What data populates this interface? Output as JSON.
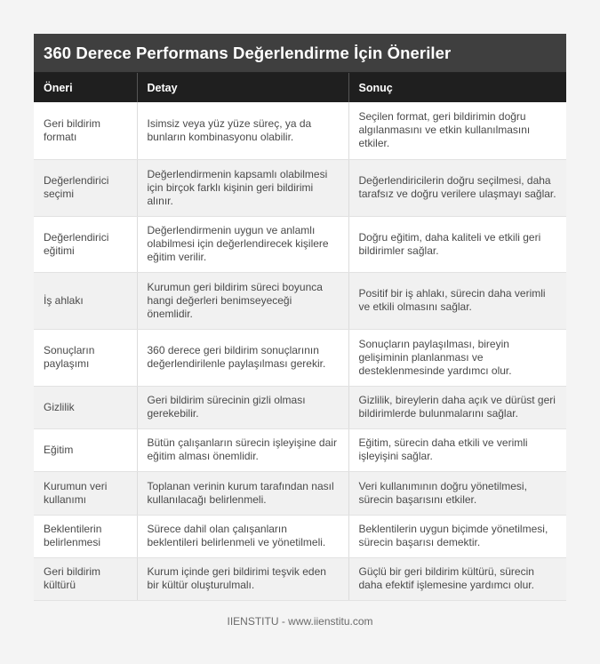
{
  "title": "360 Derece Performans Değerlendirme İçin Öneriler",
  "columns": [
    "Öneri",
    "Detay",
    "Sonuç"
  ],
  "rows": [
    {
      "oneri": "Geri bildirim formatı",
      "detay": "Isimsiz veya yüz yüze süreç, ya da bunların kombinasyonu olabilir.",
      "sonuc": "Seçilen format, geri bildirimin doğru algılanmasını ve etkin kullanılmasını etkiler."
    },
    {
      "oneri": "Değerlendirici seçimi",
      "detay": "Değerlendirmenin kapsamlı olabilmesi için birçok farklı kişinin geri bildirimi alınır.",
      "sonuc": "Değerlendiricilerin doğru seçilmesi, daha tarafsız ve doğru verilere ulaşmayı sağlar."
    },
    {
      "oneri": "Değerlendirici eğitimi",
      "detay": "Değerlendirmenin uygun ve anlamlı olabilmesi için değerlendirecek kişilere eğitim verilir.",
      "sonuc": "Doğru eğitim, daha kaliteli ve etkili geri bildirimler sağlar."
    },
    {
      "oneri": "İş ahlakı",
      "detay": "Kurumun geri bildirim süreci boyunca hangi değerleri benimseyeceği önemlidir.",
      "sonuc": "Positif bir iş ahlakı, sürecin daha verimli ve etkili olmasını sağlar."
    },
    {
      "oneri": "Sonuçların paylaşımı",
      "detay": "360 derece geri bildirim sonuçlarının değerlendirilenle paylaşılması gerekir.",
      "sonuc": "Sonuçların paylaşılması, bireyin gelişiminin planlanması ve desteklenmesinde yardımcı olur."
    },
    {
      "oneri": "Gizlilik",
      "detay": "Geri bildirim sürecinin gizli olması gerekebilir.",
      "sonuc": "Gizlilik, bireylerin daha açık ve dürüst geri bildirimlerde bulunmalarını sağlar."
    },
    {
      "oneri": "Eğitim",
      "detay": "Bütün çalışanların sürecin işleyişine dair eğitim alması önemlidir.",
      "sonuc": "Eğitim, sürecin daha etkili ve verimli işleyişini sağlar."
    },
    {
      "oneri": "Kurumun veri kullanımı",
      "detay": "Toplanan verinin kurum tarafından nasıl kullanılacağı belirlenmeli.",
      "sonuc": "Veri kullanımının doğru yönetilmesi, sürecin başarısını etkiler."
    },
    {
      "oneri": "Beklentilerin belirlenmesi",
      "detay": "Sürece dahil olan çalışanların beklentileri belirlenmeli ve yönetilmeli.",
      "sonuc": "Beklentilerin uygun biçimde yönetilmesi, sürecin başarısı demektir."
    },
    {
      "oneri": "Geri bildirim kültürü",
      "detay": "Kurum içinde geri bildirimi teşvik eden bir kültür oluşturulmalı.",
      "sonuc": "Güçlü bir geri bildirim kültürü, sürecin daha efektif işlemesine yardımcı olur."
    }
  ],
  "footer": "IIENSTITU - www.iienstitu.com",
  "colors": {
    "title_bg": "#3f3f3f",
    "header_bg": "#1f1f1f",
    "row_alt_bg": "#f1f1f1",
    "page_bg": "#f4f4f4"
  }
}
